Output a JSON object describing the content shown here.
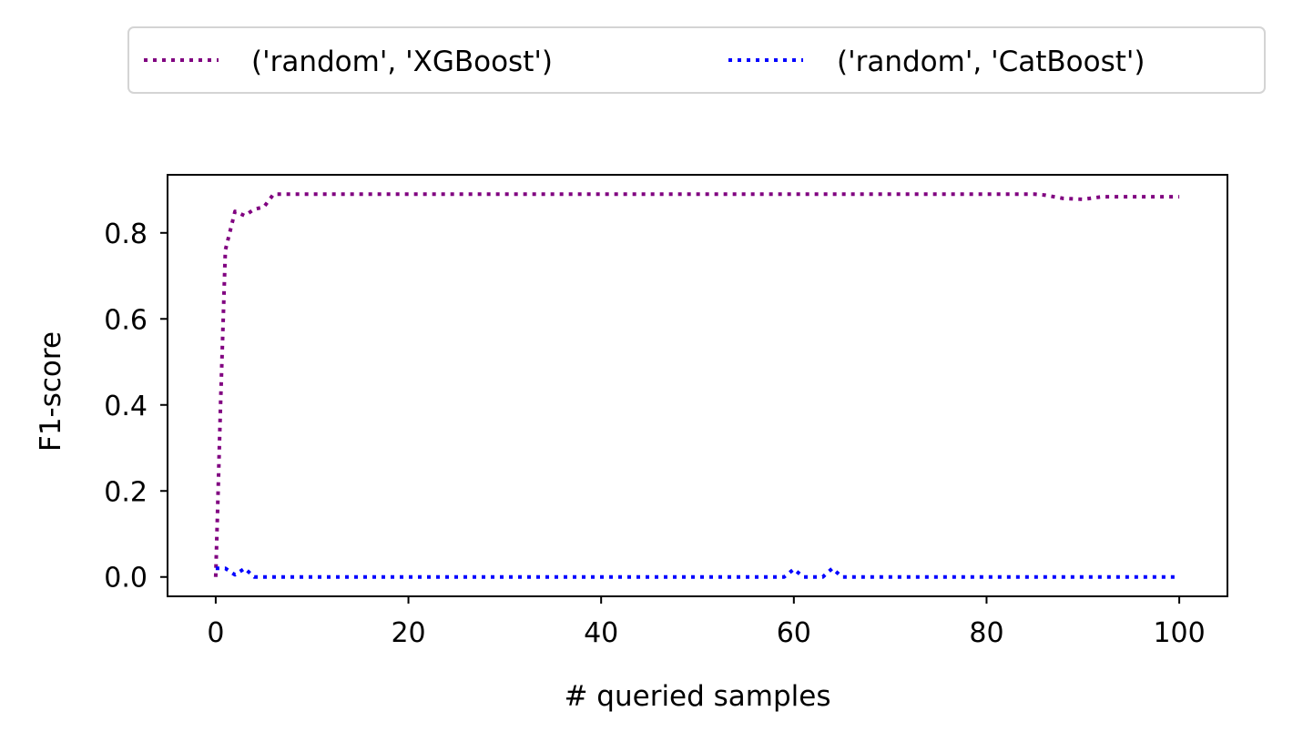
{
  "chart_data": {
    "type": "line",
    "xlabel": "# queried samples",
    "ylabel": "F1-score",
    "xlim": [
      -5,
      105
    ],
    "ylim": [
      -0.045,
      0.935
    ],
    "xticks": [
      0,
      20,
      40,
      60,
      80,
      100
    ],
    "xtick_labels": [
      "0",
      "20",
      "40",
      "60",
      "80",
      "100"
    ],
    "yticks": [
      0.0,
      0.2,
      0.4,
      0.6,
      0.8
    ],
    "ytick_labels": [
      "0.0",
      "0.2",
      "0.4",
      "0.6",
      "0.8"
    ],
    "grid": false,
    "legend_placement": "top (above plot, 2 columns)",
    "series": [
      {
        "name": "('random', 'XGBoost')",
        "color": "#800080",
        "linestyle": "dotted",
        "x": [
          0,
          0.5,
          1,
          2,
          3,
          4,
          5,
          6,
          10,
          20,
          30,
          40,
          50,
          60,
          70,
          80,
          85,
          86,
          88,
          90,
          92,
          95,
          100
        ],
        "y": [
          0.0,
          0.4,
          0.76,
          0.85,
          0.84,
          0.855,
          0.86,
          0.89,
          0.89,
          0.89,
          0.89,
          0.89,
          0.89,
          0.89,
          0.89,
          0.89,
          0.89,
          0.888,
          0.88,
          0.878,
          0.884,
          0.884,
          0.884
        ]
      },
      {
        "name": "('random', 'CatBoost')",
        "color": "#0000ff",
        "linestyle": "dotted",
        "x": [
          0,
          1,
          2,
          3,
          4,
          10,
          20,
          30,
          40,
          50,
          59,
          60,
          61,
          62,
          63,
          64,
          65,
          70,
          80,
          90,
          100
        ],
        "y": [
          0.02,
          0.02,
          0.005,
          0.02,
          0.0,
          0.0,
          0.0,
          0.0,
          0.0,
          0.0,
          0.0,
          0.018,
          0.0,
          0.0,
          0.0,
          0.02,
          0.0,
          0.0,
          0.0,
          0.0,
          0.0
        ]
      }
    ]
  }
}
